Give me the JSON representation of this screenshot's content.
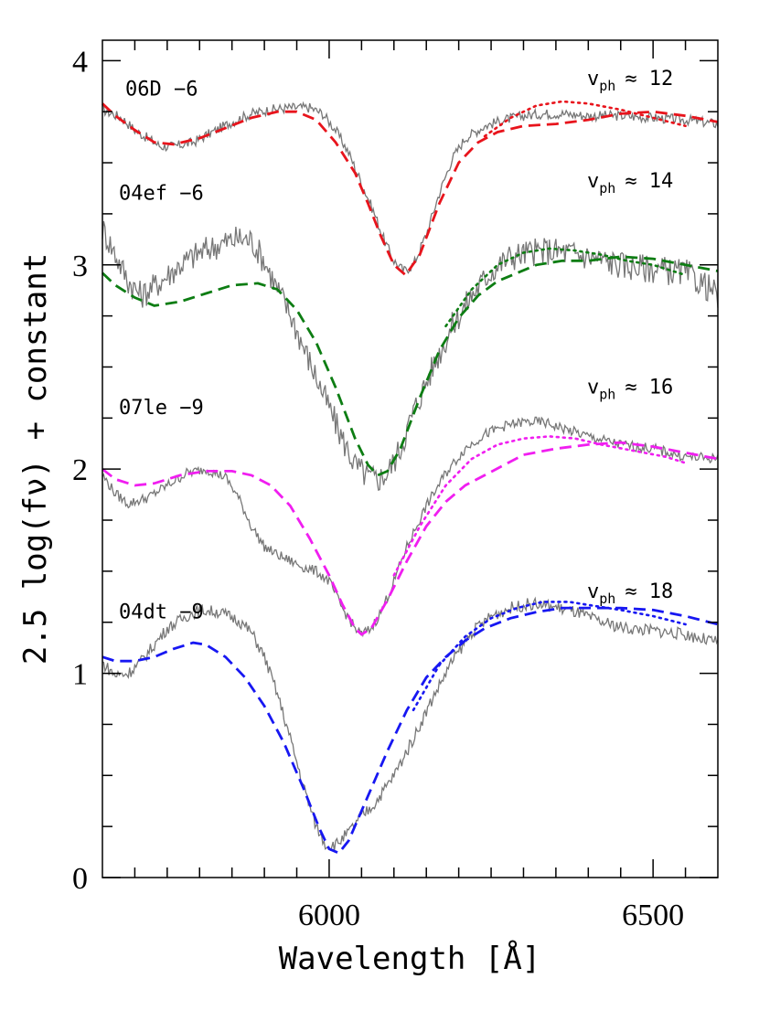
{
  "chart_data": {
    "type": "line",
    "title": "",
    "xlabel": "Wavelength [Å]",
    "ylabel": "2.5 log(fν) + constant",
    "xlim": [
      5650,
      6600
    ],
    "ylim": [
      0,
      4.1
    ],
    "x_ticks": [
      6000,
      6500
    ],
    "y_ticks": [
      0,
      1,
      2,
      3,
      4
    ],
    "grid": false,
    "legend": "none",
    "spectra": [
      {
        "label": "06D −6",
        "vph_text": "≈ 12",
        "color": "#e8141c",
        "observed": [
          [
            5650,
            3.76
          ],
          [
            5680,
            3.72
          ],
          [
            5700,
            3.66
          ],
          [
            5720,
            3.62
          ],
          [
            5740,
            3.58
          ],
          [
            5760,
            3.58
          ],
          [
            5790,
            3.6
          ],
          [
            5820,
            3.65
          ],
          [
            5850,
            3.7
          ],
          [
            5880,
            3.74
          ],
          [
            5910,
            3.76
          ],
          [
            5940,
            3.77
          ],
          [
            5970,
            3.77
          ],
          [
            5990,
            3.74
          ],
          [
            6010,
            3.66
          ],
          [
            6030,
            3.55
          ],
          [
            6050,
            3.4
          ],
          [
            6070,
            3.25
          ],
          [
            6085,
            3.12
          ],
          [
            6100,
            3.02
          ],
          [
            6115,
            2.97
          ],
          [
            6130,
            3.0
          ],
          [
            6150,
            3.15
          ],
          [
            6170,
            3.35
          ],
          [
            6190,
            3.52
          ],
          [
            6210,
            3.62
          ],
          [
            6240,
            3.68
          ],
          [
            6270,
            3.71
          ],
          [
            6300,
            3.73
          ],
          [
            6330,
            3.74
          ],
          [
            6360,
            3.74
          ],
          [
            6400,
            3.73
          ],
          [
            6450,
            3.73
          ],
          [
            6500,
            3.72
          ],
          [
            6550,
            3.71
          ],
          [
            6600,
            3.69
          ]
        ],
        "model_dashed": [
          [
            5650,
            3.79
          ],
          [
            5670,
            3.73
          ],
          [
            5700,
            3.66
          ],
          [
            5730,
            3.6
          ],
          [
            5760,
            3.59
          ],
          [
            5800,
            3.62
          ],
          [
            5840,
            3.67
          ],
          [
            5880,
            3.72
          ],
          [
            5920,
            3.75
          ],
          [
            5950,
            3.75
          ],
          [
            5980,
            3.71
          ],
          [
            6010,
            3.6
          ],
          [
            6040,
            3.45
          ],
          [
            6060,
            3.3
          ],
          [
            6080,
            3.14
          ],
          [
            6100,
            3.0
          ],
          [
            6118,
            2.95
          ],
          [
            6140,
            3.05
          ],
          [
            6170,
            3.3
          ],
          [
            6200,
            3.5
          ],
          [
            6230,
            3.6
          ],
          [
            6260,
            3.65
          ],
          [
            6300,
            3.68
          ],
          [
            6350,
            3.69
          ],
          [
            6400,
            3.71
          ],
          [
            6450,
            3.74
          ],
          [
            6500,
            3.75
          ],
          [
            6550,
            3.73
          ],
          [
            6600,
            3.7
          ]
        ],
        "model_dotted": [
          [
            6240,
            3.63
          ],
          [
            6280,
            3.72
          ],
          [
            6320,
            3.78
          ],
          [
            6360,
            3.8
          ],
          [
            6400,
            3.79
          ],
          [
            6450,
            3.76
          ],
          [
            6500,
            3.72
          ],
          [
            6550,
            3.68
          ]
        ]
      },
      {
        "label": "04ef −6",
        "vph_text": "≈ 14",
        "color": "#0d7d13",
        "observed": [
          [
            5650,
            3.18
          ],
          [
            5670,
            3.05
          ],
          [
            5690,
            2.92
          ],
          [
            5710,
            2.85
          ],
          [
            5740,
            2.92
          ],
          [
            5770,
            3.0
          ],
          [
            5800,
            3.06
          ],
          [
            5830,
            3.1
          ],
          [
            5860,
            3.13
          ],
          [
            5880,
            3.12
          ],
          [
            5900,
            3.02
          ],
          [
            5920,
            2.88
          ],
          [
            5940,
            2.76
          ],
          [
            5960,
            2.6
          ],
          [
            5980,
            2.45
          ],
          [
            6000,
            2.3
          ],
          [
            6020,
            2.15
          ],
          [
            6040,
            2.02
          ],
          [
            6060,
            1.96
          ],
          [
            6075,
            1.95
          ],
          [
            6090,
            1.98
          ],
          [
            6110,
            2.1
          ],
          [
            6130,
            2.28
          ],
          [
            6160,
            2.5
          ],
          [
            6190,
            2.7
          ],
          [
            6220,
            2.85
          ],
          [
            6250,
            2.97
          ],
          [
            6280,
            3.04
          ],
          [
            6310,
            3.06
          ],
          [
            6340,
            3.07
          ],
          [
            6370,
            3.06
          ],
          [
            6400,
            3.04
          ],
          [
            6450,
            3.0
          ],
          [
            6500,
            2.98
          ],
          [
            6550,
            2.96
          ],
          [
            6580,
            2.9
          ],
          [
            6600,
            2.85
          ]
        ],
        "model_dashed": [
          [
            5650,
            2.96
          ],
          [
            5670,
            2.9
          ],
          [
            5700,
            2.84
          ],
          [
            5730,
            2.8
          ],
          [
            5770,
            2.82
          ],
          [
            5810,
            2.86
          ],
          [
            5850,
            2.9
          ],
          [
            5890,
            2.91
          ],
          [
            5920,
            2.88
          ],
          [
            5950,
            2.78
          ],
          [
            5980,
            2.62
          ],
          [
            6010,
            2.4
          ],
          [
            6040,
            2.15
          ],
          [
            6060,
            2.02
          ],
          [
            6075,
            1.97
          ],
          [
            6090,
            1.99
          ],
          [
            6110,
            2.1
          ],
          [
            6140,
            2.35
          ],
          [
            6170,
            2.58
          ],
          [
            6200,
            2.74
          ],
          [
            6230,
            2.85
          ],
          [
            6260,
            2.92
          ],
          [
            6290,
            2.96
          ],
          [
            6320,
            3.0
          ],
          [
            6360,
            3.02
          ],
          [
            6400,
            3.02
          ],
          [
            6450,
            3.04
          ],
          [
            6500,
            3.03
          ],
          [
            6550,
            3.0
          ],
          [
            6600,
            2.97
          ]
        ],
        "model_dotted": [
          [
            6180,
            2.7
          ],
          [
            6220,
            2.88
          ],
          [
            6260,
            3.0
          ],
          [
            6300,
            3.06
          ],
          [
            6340,
            3.08
          ],
          [
            6380,
            3.07
          ],
          [
            6420,
            3.05
          ],
          [
            6460,
            3.02
          ],
          [
            6500,
            3.0
          ],
          [
            6550,
            2.95
          ]
        ]
      },
      {
        "label": "07le −9",
        "vph_text": "≈ 16",
        "color": "#f01ef0",
        "observed": [
          [
            5650,
            1.97
          ],
          [
            5670,
            1.88
          ],
          [
            5690,
            1.83
          ],
          [
            5720,
            1.86
          ],
          [
            5750,
            1.92
          ],
          [
            5780,
            1.98
          ],
          [
            5810,
            2.0
          ],
          [
            5840,
            1.96
          ],
          [
            5860,
            1.86
          ],
          [
            5880,
            1.72
          ],
          [
            5900,
            1.62
          ],
          [
            5920,
            1.58
          ],
          [
            5940,
            1.55
          ],
          [
            5960,
            1.52
          ],
          [
            5980,
            1.5
          ],
          [
            6000,
            1.45
          ],
          [
            6020,
            1.32
          ],
          [
            6040,
            1.22
          ],
          [
            6050,
            1.19
          ],
          [
            6065,
            1.22
          ],
          [
            6080,
            1.3
          ],
          [
            6100,
            1.45
          ],
          [
            6120,
            1.62
          ],
          [
            6150,
            1.82
          ],
          [
            6180,
            1.98
          ],
          [
            6210,
            2.1
          ],
          [
            6240,
            2.17
          ],
          [
            6270,
            2.21
          ],
          [
            6300,
            2.23
          ],
          [
            6330,
            2.23
          ],
          [
            6360,
            2.2
          ],
          [
            6400,
            2.16
          ],
          [
            6450,
            2.12
          ],
          [
            6500,
            2.1
          ],
          [
            6550,
            2.06
          ],
          [
            6600,
            2.05
          ]
        ],
        "model_dashed": [
          [
            5650,
            2.0
          ],
          [
            5670,
            1.95
          ],
          [
            5700,
            1.92
          ],
          [
            5730,
            1.93
          ],
          [
            5770,
            1.97
          ],
          [
            5810,
            1.99
          ],
          [
            5850,
            1.99
          ],
          [
            5880,
            1.97
          ],
          [
            5910,
            1.92
          ],
          [
            5940,
            1.82
          ],
          [
            5970,
            1.66
          ],
          [
            6000,
            1.48
          ],
          [
            6020,
            1.34
          ],
          [
            6040,
            1.22
          ],
          [
            6050,
            1.19
          ],
          [
            6065,
            1.22
          ],
          [
            6090,
            1.36
          ],
          [
            6120,
            1.55
          ],
          [
            6150,
            1.72
          ],
          [
            6180,
            1.84
          ],
          [
            6210,
            1.92
          ],
          [
            6240,
            1.97
          ],
          [
            6270,
            2.02
          ],
          [
            6300,
            2.07
          ],
          [
            6350,
            2.1
          ],
          [
            6400,
            2.12
          ],
          [
            6450,
            2.13
          ],
          [
            6500,
            2.11
          ],
          [
            6550,
            2.08
          ],
          [
            6600,
            2.05
          ]
        ],
        "model_dotted": [
          [
            6100,
            1.48
          ],
          [
            6140,
            1.72
          ],
          [
            6180,
            1.92
          ],
          [
            6220,
            2.05
          ],
          [
            6260,
            2.12
          ],
          [
            6300,
            2.15
          ],
          [
            6340,
            2.16
          ],
          [
            6380,
            2.15
          ],
          [
            6420,
            2.12
          ],
          [
            6470,
            2.09
          ],
          [
            6520,
            2.06
          ],
          [
            6550,
            2.03
          ]
        ]
      },
      {
        "label": "04dt −9",
        "vph_text": "≈ 18",
        "color": "#1717f2",
        "observed": [
          [
            5650,
            1.05
          ],
          [
            5670,
            0.99
          ],
          [
            5690,
            1.0
          ],
          [
            5710,
            1.06
          ],
          [
            5730,
            1.14
          ],
          [
            5750,
            1.22
          ],
          [
            5780,
            1.28
          ],
          [
            5800,
            1.31
          ],
          [
            5830,
            1.3
          ],
          [
            5860,
            1.26
          ],
          [
            5880,
            1.2
          ],
          [
            5900,
            1.08
          ],
          [
            5920,
            0.9
          ],
          [
            5940,
            0.68
          ],
          [
            5960,
            0.45
          ],
          [
            5980,
            0.25
          ],
          [
            5995,
            0.16
          ],
          [
            6010,
            0.16
          ],
          [
            6030,
            0.22
          ],
          [
            6050,
            0.3
          ],
          [
            6070,
            0.36
          ],
          [
            6100,
            0.5
          ],
          [
            6130,
            0.68
          ],
          [
            6160,
            0.88
          ],
          [
            6190,
            1.06
          ],
          [
            6220,
            1.2
          ],
          [
            6250,
            1.28
          ],
          [
            6280,
            1.32
          ],
          [
            6310,
            1.34
          ],
          [
            6340,
            1.33
          ],
          [
            6380,
            1.3
          ],
          [
            6420,
            1.25
          ],
          [
            6460,
            1.22
          ],
          [
            6500,
            1.21
          ],
          [
            6550,
            1.19
          ],
          [
            6600,
            1.15
          ]
        ],
        "model_dashed": [
          [
            5650,
            1.08
          ],
          [
            5670,
            1.06
          ],
          [
            5700,
            1.06
          ],
          [
            5730,
            1.08
          ],
          [
            5760,
            1.12
          ],
          [
            5790,
            1.15
          ],
          [
            5810,
            1.14
          ],
          [
            5840,
            1.08
          ],
          [
            5870,
            0.98
          ],
          [
            5900,
            0.84
          ],
          [
            5930,
            0.66
          ],
          [
            5960,
            0.44
          ],
          [
            5985,
            0.24
          ],
          [
            6000,
            0.14
          ],
          [
            6015,
            0.12
          ],
          [
            6030,
            0.18
          ],
          [
            6060,
            0.4
          ],
          [
            6090,
            0.62
          ],
          [
            6120,
            0.82
          ],
          [
            6150,
            0.98
          ],
          [
            6180,
            1.08
          ],
          [
            6210,
            1.16
          ],
          [
            6240,
            1.22
          ],
          [
            6280,
            1.27
          ],
          [
            6320,
            1.3
          ],
          [
            6360,
            1.32
          ],
          [
            6400,
            1.32
          ],
          [
            6450,
            1.32
          ],
          [
            6500,
            1.31
          ],
          [
            6550,
            1.28
          ],
          [
            6600,
            1.24
          ]
        ],
        "model_dotted": [
          [
            6130,
            0.82
          ],
          [
            6170,
            1.04
          ],
          [
            6210,
            1.18
          ],
          [
            6250,
            1.27
          ],
          [
            6290,
            1.32
          ],
          [
            6330,
            1.35
          ],
          [
            6370,
            1.35
          ],
          [
            6410,
            1.33
          ],
          [
            6450,
            1.31
          ],
          [
            6500,
            1.28
          ],
          [
            6550,
            1.24
          ]
        ]
      }
    ]
  }
}
